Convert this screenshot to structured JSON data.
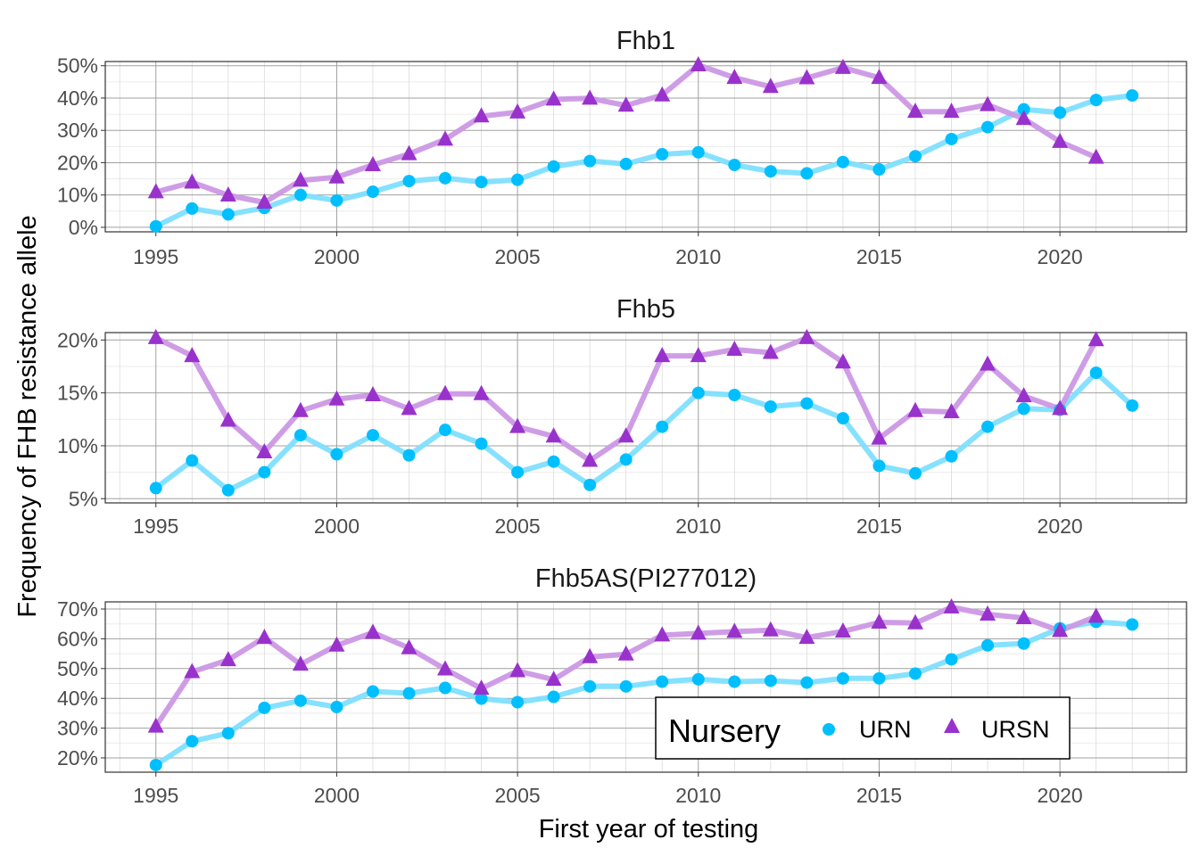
{
  "chart_data": {
    "type": "line",
    "xlabel": "First year of testing",
    "ylabel": "Frequency of FHB resistance allele",
    "legend": {
      "title": "Nursery",
      "position": "bottom-right",
      "entries": [
        {
          "name": "URN",
          "color": "#00BFFF",
          "shape": "circle"
        },
        {
          "name": "URSN",
          "color": "#9932CC",
          "shape": "triangle"
        }
      ]
    },
    "x_ticks": [
      "1995",
      "2000",
      "2005",
      "2010",
      "2015",
      "2020"
    ],
    "panels": [
      {
        "title": "Fhb1",
        "ylim": [
          0,
          50
        ],
        "y_ticks": [
          0,
          10,
          20,
          30,
          40,
          50
        ],
        "y_tick_labels": [
          "0%",
          "10%",
          "20%",
          "30%",
          "40%",
          "50%"
        ],
        "series": [
          {
            "name": "URN",
            "x": [
              1995,
              1996,
              1997,
              1998,
              1999,
              2000,
              2001,
              2002,
              2003,
              2004,
              2005,
              2006,
              2007,
              2008,
              2009,
              2010,
              2011,
              2012,
              2013,
              2014,
              2015,
              2016,
              2017,
              2018,
              2019,
              2020,
              2021,
              2022
            ],
            "values": [
              0.3,
              5.8,
              4.0,
              6.0,
              10.0,
              8.3,
              11.0,
              14.3,
              15.2,
              14.0,
              14.7,
              18.8,
              20.5,
              19.6,
              22.6,
              23.2,
              19.3,
              17.3,
              16.7,
              20.2,
              17.9,
              22.0,
              27.3,
              31.0,
              36.5,
              35.5,
              39.4,
              40.8
            ]
          },
          {
            "name": "URSN",
            "x": [
              1995,
              1996,
              1997,
              1998,
              1999,
              2000,
              2001,
              2002,
              2003,
              2004,
              2005,
              2006,
              2007,
              2008,
              2009,
              2010,
              2011,
              2012,
              2013,
              2014,
              2015,
              2016,
              2017,
              2018,
              2019,
              2020,
              2021
            ],
            "values": [
              10.9,
              13.9,
              9.9,
              7.7,
              14.5,
              15.5,
              19.3,
              22.7,
              27.2,
              34.4,
              35.6,
              39.6,
              39.9,
              37.7,
              40.9,
              50.2,
              46.3,
              43.5,
              46.2,
              49.4,
              46.3,
              35.8,
              35.8,
              37.9,
              33.6,
              26.5,
              21.6
            ]
          }
        ]
      },
      {
        "title": "Fhb5",
        "ylim": [
          5,
          20
        ],
        "y_ticks": [
          5,
          10,
          15,
          20
        ],
        "y_tick_labels": [
          "5%",
          "10%",
          "15%",
          "20%"
        ],
        "series": [
          {
            "name": "URN",
            "x": [
              1995,
              1996,
              1997,
              1998,
              1999,
              2000,
              2001,
              2002,
              2003,
              2004,
              2005,
              2006,
              2007,
              2008,
              2009,
              2010,
              2011,
              2012,
              2013,
              2014,
              2015,
              2016,
              2017,
              2018,
              2019,
              2020,
              2021,
              2022
            ],
            "values": [
              6.0,
              8.6,
              5.8,
              7.5,
              11.0,
              9.2,
              11.0,
              9.1,
              11.5,
              10.2,
              7.5,
              8.5,
              6.3,
              8.7,
              11.8,
              15.0,
              14.8,
              13.7,
              14.0,
              12.6,
              8.1,
              7.4,
              9.0,
              11.8,
              13.5,
              13.4,
              16.9,
              13.8
            ]
          },
          {
            "name": "URSN",
            "x": [
              1995,
              1996,
              1997,
              1998,
              1999,
              2000,
              2001,
              2002,
              2003,
              2004,
              2005,
              2006,
              2007,
              2008,
              2009,
              2010,
              2011,
              2012,
              2013,
              2014,
              2015,
              2016,
              2017,
              2018,
              2019,
              2020,
              2021
            ],
            "values": [
              20.2,
              18.5,
              12.4,
              9.4,
              13.3,
              14.4,
              14.8,
              13.5,
              14.9,
              14.9,
              11.8,
              10.9,
              8.6,
              10.9,
              18.5,
              18.5,
              19.1,
              18.8,
              20.2,
              17.9,
              10.7,
              13.3,
              13.2,
              17.7,
              14.7,
              13.5,
              20.0
            ]
          }
        ]
      },
      {
        "title": "Fhb5AS(PI277012)",
        "ylim": [
          20,
          70
        ],
        "y_ticks": [
          20,
          30,
          40,
          50,
          60,
          70
        ],
        "y_tick_labels": [
          "20%",
          "30%",
          "40%",
          "50%",
          "60%",
          "70%"
        ],
        "series": [
          {
            "name": "URN",
            "x": [
              1995,
              1996,
              1997,
              1998,
              1999,
              2000,
              2001,
              2002,
              2003,
              2004,
              2005,
              2006,
              2007,
              2008,
              2009,
              2010,
              2011,
              2012,
              2013,
              2014,
              2015,
              2016,
              2017,
              2018,
              2019,
              2020,
              2021,
              2022
            ],
            "values": [
              17.6,
              25.6,
              28.3,
              36.8,
              39.2,
              37.1,
              42.3,
              41.7,
              43.5,
              39.9,
              38.7,
              40.5,
              44.0,
              44.0,
              45.6,
              46.4,
              45.6,
              45.9,
              45.3,
              46.7,
              46.7,
              48.3,
              53.1,
              57.8,
              58.4,
              63.5,
              65.7,
              64.8
            ]
          },
          {
            "name": "URSN",
            "x": [
              1995,
              1996,
              1997,
              1998,
              1999,
              2000,
              2001,
              2002,
              2003,
              2004,
              2005,
              2006,
              2007,
              2008,
              2009,
              2010,
              2011,
              2012,
              2013,
              2014,
              2015,
              2016,
              2017,
              2018,
              2019,
              2020,
              2021
            ],
            "values": [
              30.6,
              48.9,
              52.9,
              60.4,
              51.4,
              57.8,
              62.1,
              56.9,
              49.8,
              43.3,
              49.2,
              46.3,
              53.9,
              54.8,
              61.2,
              61.8,
              62.4,
              62.9,
              60.4,
              62.5,
              65.5,
              65.3,
              70.6,
              68.2,
              67.0,
              62.7,
              67.5
            ]
          }
        ]
      }
    ]
  }
}
